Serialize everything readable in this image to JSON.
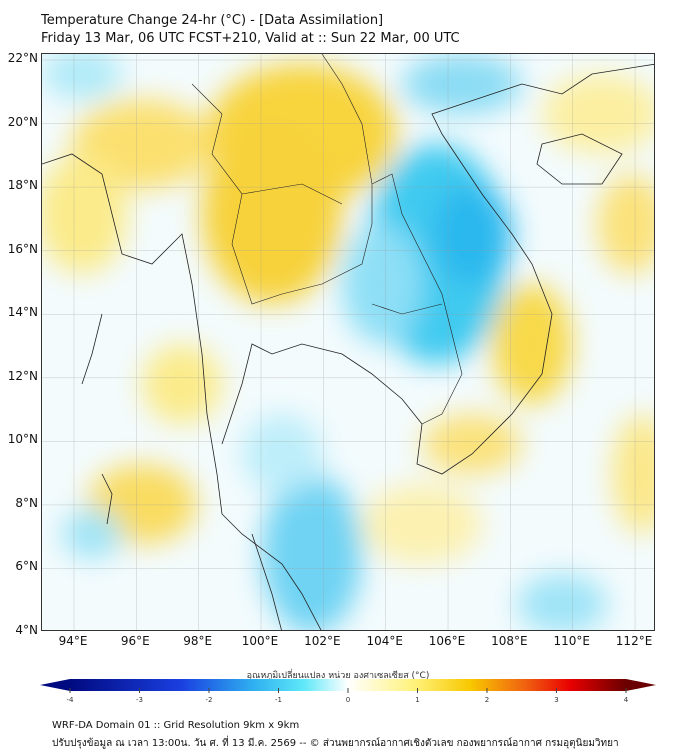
{
  "header": {
    "title": "Temperature Change 24-hr (°C) - [Data Assimilation]",
    "subtitle": "Friday 13 Mar, 06 UTC FCST+210, Valid at :: Sun 22 Mar, 00 UTC"
  },
  "map": {
    "lat_labels": [
      "22°N",
      "20°N",
      "18°N",
      "16°N",
      "14°N",
      "12°N",
      "10°N",
      "8°N",
      "6°N",
      "4°N"
    ],
    "lat_values": [
      22,
      20,
      18,
      16,
      14,
      12,
      10,
      8,
      6,
      4
    ],
    "lon_labels": [
      "94°E",
      "96°E",
      "98°E",
      "100°E",
      "102°E",
      "104°E",
      "106°E",
      "108°E",
      "110°E",
      "112°E"
    ],
    "lon_values": [
      94,
      96,
      98,
      100,
      102,
      104,
      106,
      108,
      110,
      112
    ],
    "colors": {
      "warm": "#f7d23a",
      "warm_light": "#fbf0a0",
      "cool": "#3ecbf0",
      "cool_light": "#bdeefa"
    }
  },
  "colorbar": {
    "title": "อุณหภูมิเปลี่ยนแปลง หน่วย องศาเซลเซียส (°C)",
    "ticks": [
      "-4",
      "-3",
      "-2",
      "-1",
      "0",
      "1",
      "2",
      "3",
      "4"
    ],
    "min": -4,
    "max": 4
  },
  "footer": {
    "line1": "WRF-DA Domain 01 :: Grid Resolution 9km x 9km",
    "line2": "ปรับปรุงข้อมูล ณ เวลา 13:00น. วัน ศ. ที่ 13 มี.ค. 2569 -- © ส่วนพยากรณ์อากาศเชิงตัวเลข กองพยากรณ์อากาศ กรมอุตุนิยมวิทยา"
  }
}
